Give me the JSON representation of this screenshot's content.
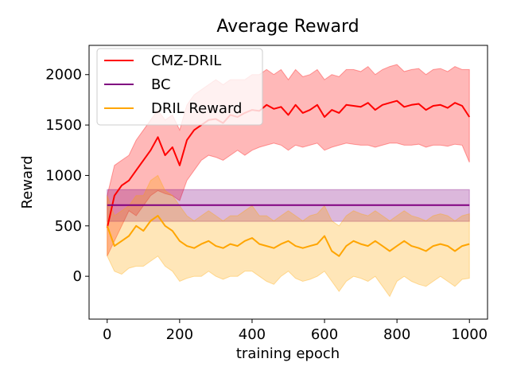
{
  "chart_data": {
    "type": "line",
    "title": "Average Reward",
    "xlabel": "training epoch",
    "ylabel": "Reward",
    "xlim": [
      -50,
      1050
    ],
    "ylim": [
      -425,
      2290
    ],
    "xticks": [
      0,
      200,
      400,
      600,
      800,
      1000
    ],
    "yticks": [
      0,
      500,
      1000,
      1500,
      2000
    ],
    "grid": false,
    "legend_position": "top-left",
    "series": [
      {
        "name": "CMZ-DRIL",
        "color": "#ff0000",
        "band_color": "#ff0000",
        "x": [
          0,
          20,
          40,
          60,
          80,
          100,
          120,
          140,
          160,
          180,
          200,
          220,
          240,
          260,
          280,
          300,
          320,
          340,
          360,
          380,
          400,
          420,
          440,
          460,
          480,
          500,
          520,
          540,
          560,
          580,
          600,
          620,
          640,
          660,
          680,
          700,
          720,
          740,
          760,
          780,
          800,
          820,
          840,
          860,
          880,
          900,
          920,
          940,
          960,
          980,
          1000
        ],
        "y": [
          480,
          800,
          900,
          950,
          1050,
          1150,
          1250,
          1380,
          1200,
          1280,
          1100,
          1350,
          1450,
          1500,
          1550,
          1560,
          1520,
          1600,
          1580,
          1620,
          1650,
          1640,
          1700,
          1660,
          1680,
          1600,
          1700,
          1620,
          1650,
          1700,
          1580,
          1650,
          1620,
          1700,
          1690,
          1680,
          1720,
          1650,
          1700,
          1720,
          1740,
          1680,
          1700,
          1710,
          1650,
          1690,
          1700,
          1670,
          1720,
          1690,
          1580
        ],
        "lower": [
          200,
          350,
          500,
          650,
          600,
          700,
          800,
          850,
          820,
          800,
          750,
          950,
          1050,
          1150,
          1200,
          1180,
          1150,
          1200,
          1250,
          1200,
          1250,
          1280,
          1300,
          1320,
          1300,
          1250,
          1300,
          1280,
          1300,
          1320,
          1250,
          1280,
          1300,
          1320,
          1310,
          1300,
          1300,
          1280,
          1300,
          1320,
          1320,
          1300,
          1300,
          1310,
          1280,
          1300,
          1300,
          1290,
          1310,
          1300,
          1130
        ],
        "upper": [
          800,
          1100,
          1150,
          1200,
          1350,
          1450,
          1550,
          1650,
          1550,
          1600,
          1450,
          1700,
          1800,
          1850,
          1900,
          1950,
          1900,
          1950,
          1950,
          1950,
          2000,
          2000,
          2050,
          2000,
          2050,
          1950,
          2050,
          1980,
          2000,
          2050,
          1950,
          2000,
          1980,
          2050,
          2050,
          2030,
          2080,
          2000,
          2050,
          2080,
          2100,
          2030,
          2050,
          2060,
          2000,
          2050,
          2060,
          2030,
          2080,
          2050,
          2050
        ]
      },
      {
        "name": "BC",
        "color": "#800080",
        "band_color": "#800080",
        "x": [
          0,
          1000
        ],
        "y": [
          705,
          705
        ],
        "lower": [
          545,
          545
        ],
        "upper": [
          860,
          860
        ]
      },
      {
        "name": "DRIL Reward",
        "color": "#ffa500",
        "band_color": "#ffa500",
        "x": [
          0,
          20,
          40,
          60,
          80,
          100,
          120,
          140,
          160,
          180,
          200,
          220,
          240,
          260,
          280,
          300,
          320,
          340,
          360,
          380,
          400,
          420,
          440,
          460,
          480,
          500,
          520,
          540,
          560,
          580,
          600,
          620,
          640,
          660,
          680,
          700,
          720,
          740,
          760,
          780,
          800,
          820,
          840,
          860,
          880,
          900,
          920,
          940,
          960,
          980,
          1000
        ],
        "y": [
          500,
          300,
          350,
          400,
          500,
          450,
          550,
          600,
          500,
          450,
          350,
          300,
          280,
          320,
          350,
          300,
          280,
          320,
          300,
          350,
          380,
          320,
          300,
          280,
          320,
          350,
          300,
          280,
          300,
          320,
          400,
          250,
          200,
          300,
          350,
          320,
          300,
          350,
          300,
          250,
          300,
          350,
          300,
          280,
          250,
          300,
          320,
          300,
          250,
          300,
          320
        ],
        "lower": [
          200,
          50,
          20,
          80,
          100,
          100,
          150,
          200,
          100,
          50,
          -50,
          -20,
          0,
          0,
          50,
          0,
          -30,
          0,
          0,
          50,
          50,
          0,
          -50,
          -80,
          0,
          50,
          -20,
          -50,
          -30,
          0,
          50,
          -50,
          -150,
          -50,
          0,
          -20,
          -50,
          0,
          -100,
          -200,
          -50,
          0,
          -50,
          -80,
          -100,
          -50,
          0,
          -50,
          -100,
          -30,
          -20
        ],
        "upper": [
          800,
          600,
          650,
          700,
          800,
          800,
          950,
          1000,
          850,
          800,
          700,
          600,
          550,
          600,
          650,
          600,
          550,
          600,
          600,
          650,
          700,
          600,
          600,
          550,
          600,
          650,
          600,
          550,
          600,
          620,
          700,
          550,
          500,
          600,
          650,
          620,
          600,
          650,
          600,
          550,
          600,
          650,
          600,
          580,
          550,
          600,
          620,
          600,
          550,
          600,
          620
        ]
      }
    ]
  }
}
